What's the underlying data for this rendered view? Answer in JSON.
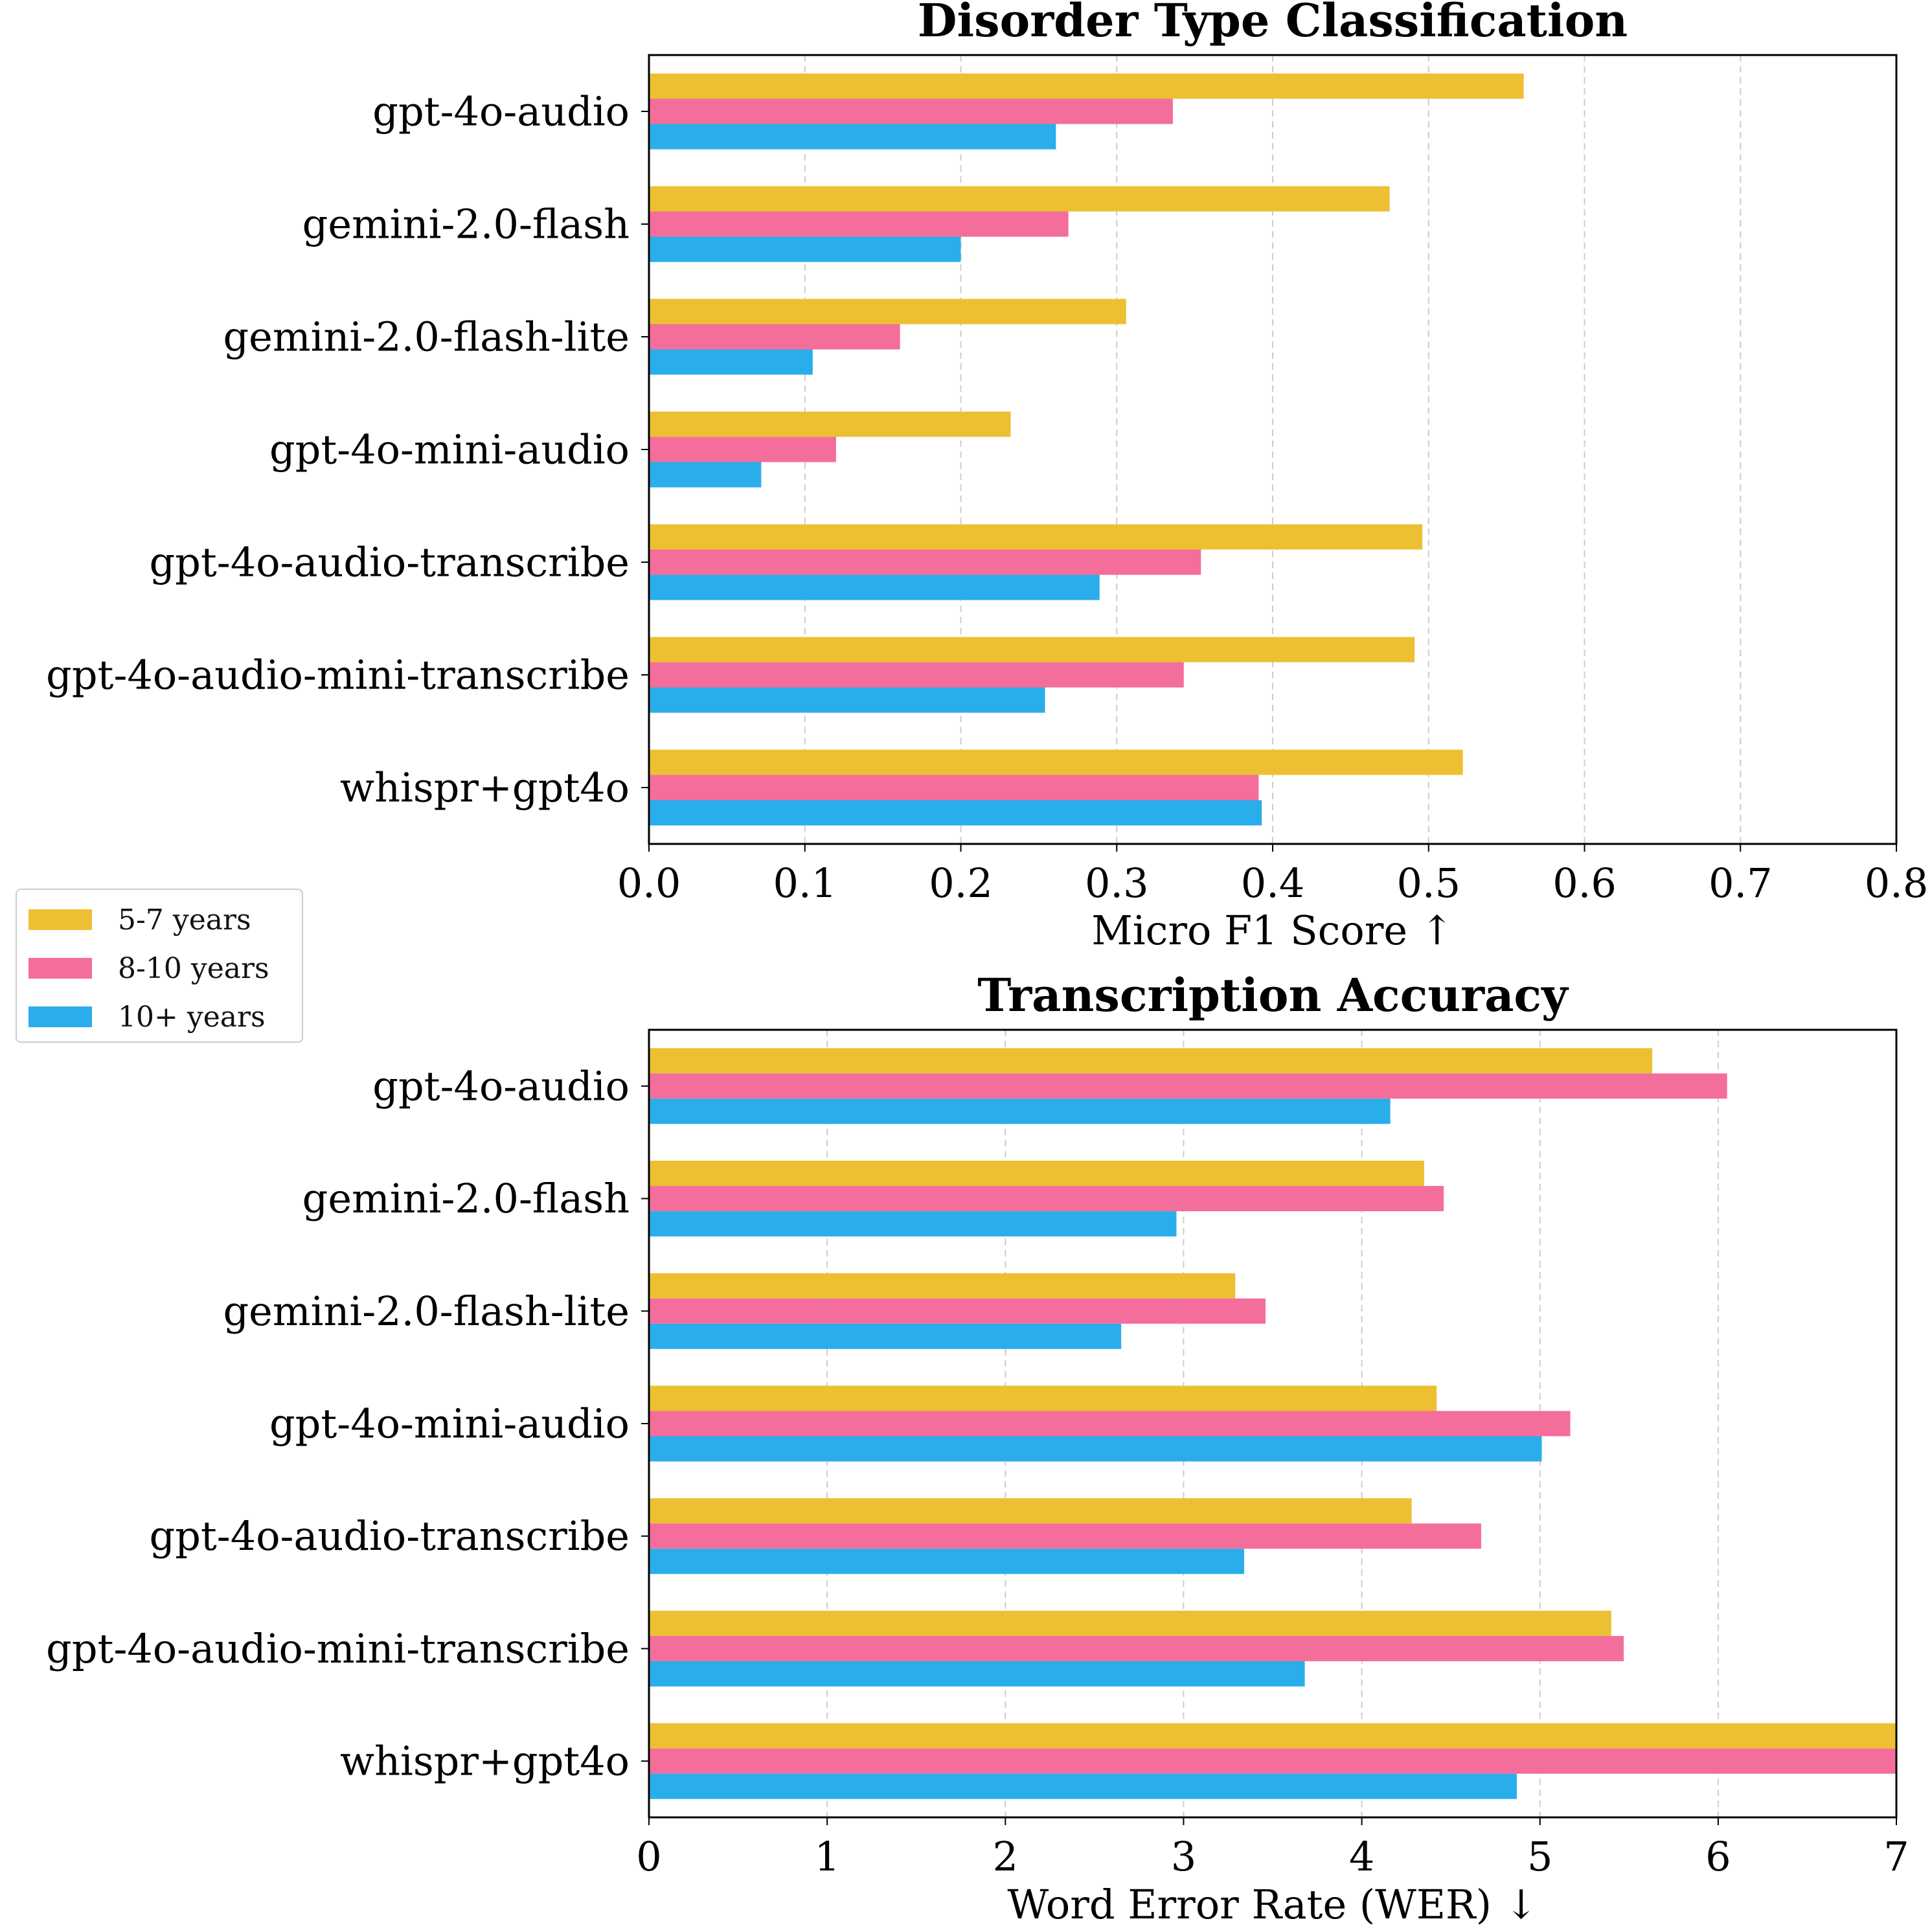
{
  "colors": {
    "s1": "#ECC032",
    "s2": "#F46E9B",
    "s3": "#29AEEB"
  },
  "legend": {
    "items": [
      {
        "label": "5-7 years",
        "color": "#ECC032"
      },
      {
        "label": "8-10 years",
        "color": "#F46E9B"
      },
      {
        "label": "10+ years",
        "color": "#29AEEB"
      }
    ]
  },
  "chart_data": [
    {
      "type": "bar",
      "orientation": "horizontal",
      "title": "Disorder Type Classification",
      "xlabel": "Micro F1 Score ↑",
      "ylabel": "",
      "xlim": [
        0,
        0.8
      ],
      "xticks": [
        "0.0",
        "0.1",
        "0.2",
        "0.3",
        "0.4",
        "0.5",
        "0.6",
        "0.7",
        "0.8"
      ],
      "grid": "vertical dashed",
      "categories": [
        "gpt-4o-audio",
        "gemini-2.0-flash",
        "gemini-2.0-flash-lite",
        "gpt-4o-mini-audio",
        "gpt-4o-audio-transcribe",
        "gpt-4o-audio-mini-transcribe",
        "whispr+gpt4o"
      ],
      "series": [
        {
          "name": "5-7 years",
          "values": [
            0.561,
            0.475,
            0.306,
            0.232,
            0.496,
            0.491,
            0.522
          ]
        },
        {
          "name": "8-10 years",
          "values": [
            0.336,
            0.269,
            0.161,
            0.12,
            0.354,
            0.343,
            0.391
          ]
        },
        {
          "name": "10+ years",
          "values": [
            0.261,
            0.2,
            0.105,
            0.072,
            0.289,
            0.254,
            0.393
          ]
        }
      ]
    },
    {
      "type": "bar",
      "orientation": "horizontal",
      "title": "Transcription Accuracy",
      "xlabel": "Word Error Rate (WER) ↓",
      "ylabel": "",
      "xlim": [
        0,
        7
      ],
      "xticks": [
        "0",
        "1",
        "2",
        "3",
        "4",
        "5",
        "6",
        "7"
      ],
      "grid": "vertical dashed",
      "categories": [
        "gpt-4o-audio",
        "gemini-2.0-flash",
        "gemini-2.0-flash-lite",
        "gpt-4o-mini-audio",
        "gpt-4o-audio-transcribe",
        "gpt-4o-audio-mini-transcribe",
        "whispr+gpt4o"
      ],
      "series": [
        {
          "name": "5-7 years",
          "values": [
            5.63,
            4.35,
            3.29,
            4.42,
            4.28,
            5.4,
            7.0
          ]
        },
        {
          "name": "8-10 years",
          "values": [
            6.05,
            4.46,
            3.46,
            5.17,
            4.67,
            5.47,
            7.0
          ]
        },
        {
          "name": "10+ years",
          "values": [
            4.16,
            2.96,
            2.65,
            5.01,
            3.34,
            3.68,
            4.87
          ]
        }
      ]
    }
  ]
}
